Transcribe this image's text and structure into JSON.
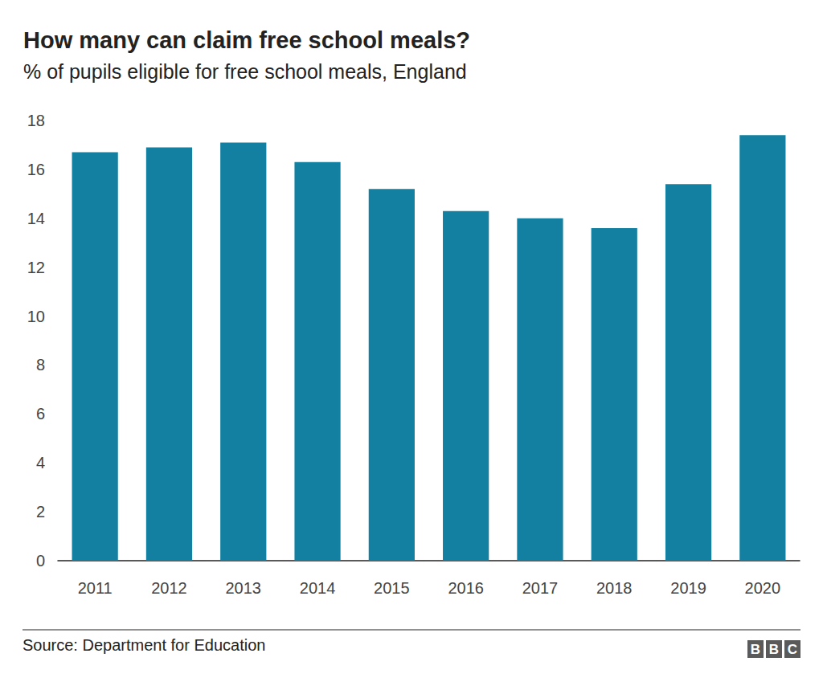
{
  "chart_data": {
    "type": "bar",
    "title": "How many can claim free school meals?",
    "subtitle": "% of pupils eligible for free school meals, England",
    "categories": [
      "2011",
      "2012",
      "2013",
      "2014",
      "2015",
      "2016",
      "2017",
      "2018",
      "2019",
      "2020"
    ],
    "values": [
      16.7,
      16.9,
      17.1,
      16.3,
      15.2,
      14.3,
      14.0,
      13.6,
      15.4,
      17.4
    ],
    "color": "#1380a1",
    "ylim": [
      0,
      18
    ],
    "yticks": [
      0,
      2,
      4,
      6,
      8,
      10,
      12,
      14,
      16,
      18
    ],
    "grid": false,
    "source": "Source: Department for Education",
    "logo": "BBC"
  }
}
